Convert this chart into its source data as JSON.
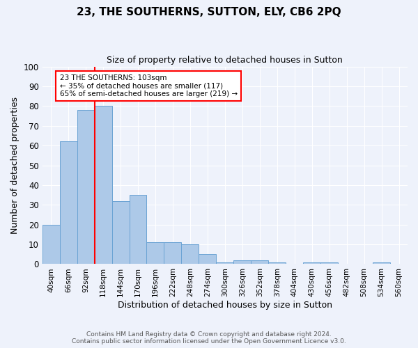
{
  "title": "23, THE SOUTHERNS, SUTTON, ELY, CB6 2PQ",
  "subtitle": "Size of property relative to detached houses in Sutton",
  "xlabel": "Distribution of detached houses by size in Sutton",
  "ylabel": "Number of detached properties",
  "bar_color": "#adc9e8",
  "bar_edge_color": "#6aa3d4",
  "background_color": "#eef2fb",
  "grid_color": "#ffffff",
  "categories": [
    "40sqm",
    "66sqm",
    "92sqm",
    "118sqm",
    "144sqm",
    "170sqm",
    "196sqm",
    "222sqm",
    "248sqm",
    "274sqm",
    "300sqm",
    "326sqm",
    "352sqm",
    "378sqm",
    "404sqm",
    "430sqm",
    "456sqm",
    "482sqm",
    "508sqm",
    "534sqm",
    "560sqm"
  ],
  "values": [
    20,
    62,
    78,
    80,
    32,
    35,
    11,
    11,
    10,
    5,
    1,
    2,
    2,
    1,
    0,
    1,
    1,
    0,
    0,
    1,
    0
  ],
  "ylim": [
    0,
    100
  ],
  "yticks": [
    0,
    10,
    20,
    30,
    40,
    50,
    60,
    70,
    80,
    90,
    100
  ],
  "annotation_title": "23 THE SOUTHERNS: 103sqm",
  "annotation_line1": "← 35% of detached houses are smaller (117)",
  "annotation_line2": "65% of semi-detached houses are larger (219) →",
  "property_line_x": 2.5,
  "footer1": "Contains HM Land Registry data © Crown copyright and database right 2024.",
  "footer2": "Contains public sector information licensed under the Open Government Licence v3.0."
}
